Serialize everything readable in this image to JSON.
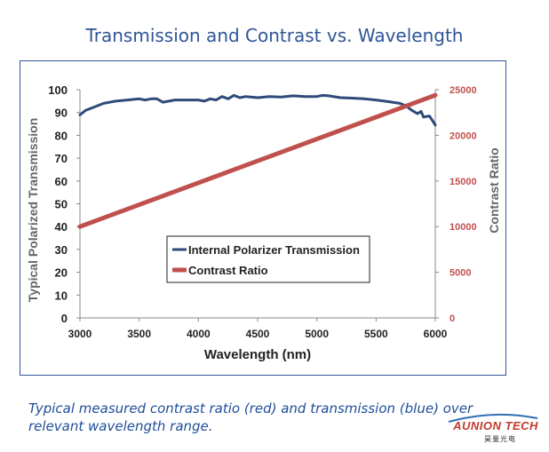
{
  "page": {
    "title": "Transmission and Contrast vs. Wavelength",
    "caption": "Typical measured contrast ratio (red) and transmission (blue) over relevant wavelength range.",
    "logo": {
      "name": "AUNION TECH",
      "sub": "昊量光电",
      "color": "#c0392b"
    }
  },
  "chart_data": {
    "type": "line",
    "title": "",
    "xlabel": "Wavelength (nm)",
    "ylabel": "Typical Polarized Transmission",
    "y2label": "Contrast Ratio",
    "xlim": [
      3000,
      6000
    ],
    "ylim": [
      0,
      100
    ],
    "y2lim": [
      0,
      25000
    ],
    "x_ticks": [
      "3000",
      "3500",
      "4000",
      "4500",
      "5000",
      "5500",
      "6000"
    ],
    "y_ticks": [
      "0",
      "10",
      "20",
      "30",
      "40",
      "50",
      "60",
      "70",
      "80",
      "90",
      "100"
    ],
    "y2_ticks": [
      "0",
      "5000",
      "10000",
      "15000",
      "20000",
      "25000"
    ],
    "grid": false,
    "legend_placement": "center-left",
    "series": [
      {
        "name": "Internal Polarizer Transmission",
        "color": "#2e4a7a",
        "axis": "left",
        "x": [
          3000,
          3050,
          3100,
          3150,
          3200,
          3300,
          3400,
          3500,
          3550,
          3600,
          3650,
          3700,
          3750,
          3800,
          3900,
          4000,
          4050,
          4100,
          4150,
          4200,
          4250,
          4300,
          4350,
          4400,
          4500,
          4600,
          4700,
          4800,
          4900,
          5000,
          5050,
          5100,
          5200,
          5300,
          5400,
          5500,
          5600,
          5700,
          5750,
          5800,
          5850,
          5880,
          5900,
          5950,
          5970,
          6000
        ],
        "y": [
          89,
          91,
          92,
          93,
          94,
          95,
          95.5,
          96,
          95.5,
          96,
          96,
          94.5,
          95,
          95.5,
          95.5,
          95.5,
          95,
          96,
          95.5,
          97,
          96,
          97.5,
          96.5,
          97,
          96.5,
          97,
          96.8,
          97.3,
          97,
          97,
          97.5,
          97.3,
          96.5,
          96.3,
          96,
          95.5,
          94.8,
          94,
          93,
          91,
          89.5,
          90.5,
          88,
          88.5,
          87,
          84.5
        ]
      },
      {
        "name": "Contrast Ratio",
        "color": "#c0504d",
        "axis": "right",
        "x": [
          3000,
          6000
        ],
        "y": [
          10000,
          24400
        ]
      }
    ]
  }
}
